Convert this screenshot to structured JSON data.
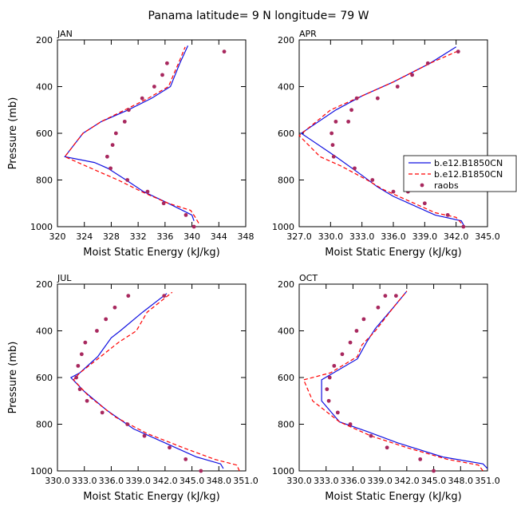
{
  "figure_title": "Panama  latitude= 9 N longitude= 79 W",
  "colors": {
    "model_1": "#1010e0",
    "model_2": "#ff0000",
    "raobs": "#a8285e"
  },
  "chart_data": [
    {
      "type": "line",
      "panel": "JAN",
      "xlabel": "Moist Static Energy (kJ/kg)",
      "ylabel": "Pressure (mb)",
      "xlim": [
        320,
        348
      ],
      "ylim": [
        1000,
        200
      ],
      "x_tick_values": [
        320,
        324,
        328,
        332,
        336,
        340,
        344,
        348
      ],
      "x_tick_labels": [
        "320",
        "324",
        "328",
        "332",
        "336",
        "340",
        "344",
        "348"
      ],
      "y_tick_values": [
        200,
        400,
        600,
        800,
        1000
      ],
      "y_tick_labels": [
        "200",
        "400",
        "600",
        "800",
        "1000"
      ],
      "series": [
        {
          "kind": "line",
          "color": "#1010e0",
          "style": "solid",
          "x": [
            340.3,
            340.0,
            336.5,
            332.8,
            330.2,
            327.5,
            325.5,
            321.1,
            323.8,
            326.5,
            330.5,
            334.0,
            336.8,
            338.2,
            339.4
          ],
          "y": [
            975,
            950,
            900,
            850,
            800,
            750,
            725,
            700,
            600,
            550,
            500,
            450,
            400,
            300,
            225
          ]
        },
        {
          "kind": "line",
          "color": "#ff0000",
          "style": "dashed",
          "x": [
            341.0,
            340.5,
            339.8,
            336.5,
            332.5,
            329.0,
            325.8,
            321.1,
            323.8,
            326.5,
            330.0,
            333.5,
            336.5,
            338.0,
            339.0
          ],
          "y": [
            985,
            960,
            930,
            900,
            850,
            800,
            760,
            700,
            600,
            550,
            500,
            450,
            400,
            300,
            230
          ]
        },
        {
          "kind": "points",
          "color": "#a8285e",
          "x": [
            340.3,
            339.1,
            335.8,
            333.4,
            330.4,
            327.9,
            327.4,
            328.2,
            328.7,
            330.0,
            330.6,
            332.6,
            334.4,
            335.6,
            336.3,
            344.8
          ],
          "y": [
            1000,
            950,
            900,
            850,
            800,
            750,
            700,
            650,
            600,
            550,
            500,
            450,
            400,
            350,
            300,
            250
          ]
        }
      ]
    },
    {
      "type": "line",
      "panel": "APR",
      "xlabel": "Moist Static Energy (kJ/kg)",
      "ylabel": "",
      "xlim": [
        327.0,
        345.0
      ],
      "ylim": [
        1000,
        200
      ],
      "x_tick_values": [
        327.0,
        330.0,
        333.0,
        336.0,
        339.0,
        342.0,
        345.0
      ],
      "x_tick_labels": [
        "327.0",
        "330.0",
        "333.0",
        "336.0",
        "339.0",
        "342.0",
        "345.0"
      ],
      "y_tick_values": [
        200,
        400,
        600,
        800,
        1000
      ],
      "y_tick_labels": [
        "200",
        "400",
        "600",
        "800",
        "1000"
      ],
      "series": [
        {
          "kind": "line",
          "color": "#1010e0",
          "style": "solid",
          "x": [
            342.8,
            342.5,
            340.0,
            336.0,
            334.5,
            333.0,
            330.5,
            327.2,
            330.5,
            333.0,
            336.0,
            339.5,
            342.0
          ],
          "y": [
            1000,
            975,
            950,
            870,
            830,
            780,
            700,
            600,
            500,
            440,
            380,
            300,
            230
          ]
        },
        {
          "kind": "line",
          "color": "#ff0000",
          "style": "dashed",
          "x": [
            342.5,
            342.0,
            340.0,
            337.0,
            335.0,
            333.5,
            331.0,
            329.0,
            327.0,
            330.0,
            333.0,
            336.0,
            339.5,
            342.3
          ],
          "y": [
            985,
            960,
            940,
            880,
            840,
            800,
            740,
            700,
            610,
            500,
            440,
            380,
            300,
            245
          ]
        },
        {
          "kind": "points",
          "color": "#a8285e",
          "x": [
            342.7,
            341.2,
            339.0,
            337.4,
            336.0,
            334.0,
            332.3,
            330.3,
            330.2,
            330.1,
            330.5,
            331.7,
            332.0,
            332.5,
            334.5,
            336.4,
            337.8,
            339.3,
            342.2
          ],
          "y": [
            1000,
            950,
            900,
            850,
            850,
            800,
            750,
            700,
            650,
            600,
            550,
            550,
            500,
            450,
            450,
            400,
            350,
            300,
            250
          ]
        }
      ],
      "legend": {
        "position": "right",
        "entries": [
          {
            "label": "b.e12.B1850CN",
            "color": "#1010e0",
            "style": "solid"
          },
          {
            "label": "b.e12.B1850CN",
            "color": "#ff0000",
            "style": "dashed"
          },
          {
            "label": "raobs",
            "color": "#a8285e",
            "style": "marker"
          }
        ]
      }
    },
    {
      "type": "line",
      "panel": "JUL",
      "xlabel": "Moist Static Energy (kJ/kg)",
      "ylabel": "Pressure (mb)",
      "xlim": [
        330.0,
        351.0
      ],
      "ylim": [
        1000,
        200
      ],
      "x_tick_values": [
        330.0,
        333.0,
        336.0,
        339.0,
        342.0,
        345.0,
        348.0,
        351.0
      ],
      "x_tick_labels": [
        "330.0",
        "333.0",
        "336.0",
        "339.0",
        "342.0",
        "345.0",
        "348.0",
        "351.0"
      ],
      "y_tick_values": [
        200,
        400,
        600,
        800,
        1000
      ],
      "y_tick_labels": [
        "200",
        "400",
        "600",
        "800",
        "1000"
      ],
      "series": [
        {
          "kind": "line",
          "color": "#1010e0",
          "style": "solid",
          "x": [
            348.5,
            348.2,
            345.5,
            342.0,
            338.5,
            335.5,
            333.0,
            331.5,
            332.5,
            334.5,
            336.0,
            337.0,
            339.5,
            342.2
          ],
          "y": [
            990,
            970,
            940,
            880,
            820,
            740,
            660,
            600,
            580,
            510,
            430,
            400,
            320,
            240
          ]
        },
        {
          "kind": "line",
          "color": "#ff0000",
          "style": "dashed",
          "x": [
            350.3,
            350.0,
            347.5,
            344.0,
            340.0,
            336.5,
            333.5,
            331.8,
            332.5,
            334.5,
            336.8,
            338.8,
            340.0,
            342.8
          ],
          "y": [
            1000,
            975,
            950,
            900,
            840,
            770,
            680,
            610,
            580,
            520,
            450,
            400,
            320,
            235
          ]
        },
        {
          "kind": "points",
          "color": "#a8285e",
          "x": [
            346.0,
            344.3,
            342.5,
            339.7,
            337.8,
            335.0,
            333.3,
            332.5,
            332.1,
            332.3,
            332.7,
            333.1,
            334.4,
            335.4,
            336.4,
            337.9,
            341.9
          ],
          "y": [
            1000,
            950,
            900,
            850,
            800,
            750,
            700,
            650,
            600,
            550,
            500,
            450,
            400,
            350,
            300,
            250,
            250
          ]
        }
      ]
    },
    {
      "type": "line",
      "panel": "OCT",
      "xlabel": "Moist Static Energy (kJ/kg)",
      "ylabel": "",
      "xlim": [
        330.0,
        351.0
      ],
      "ylim": [
        1000,
        200
      ],
      "x_tick_values": [
        330.0,
        333.0,
        336.0,
        339.0,
        342.0,
        345.0,
        348.0,
        351.0
      ],
      "x_tick_labels": [
        "330.0",
        "333.0",
        "336.0",
        "339.0",
        "342.0",
        "345.0",
        "348.0",
        "351.0"
      ],
      "y_tick_values": [
        200,
        400,
        600,
        800,
        1000
      ],
      "y_tick_labels": [
        "200",
        "400",
        "600",
        "800",
        "1000"
      ],
      "series": [
        {
          "kind": "line",
          "color": "#1010e0",
          "style": "solid",
          "x": [
            351.0,
            350.5,
            346.0,
            341.0,
            337.5,
            334.5,
            332.5,
            332.5,
            332.5,
            336.5,
            337.5,
            338.5,
            340.5,
            342.0
          ],
          "y": [
            990,
            970,
            940,
            880,
            830,
            790,
            700,
            660,
            610,
            520,
            450,
            390,
            300,
            230
          ]
        },
        {
          "kind": "line",
          "color": "#ff0000",
          "style": "dashed",
          "x": [
            350.5,
            350.0,
            346.5,
            342.0,
            338.0,
            334.5,
            331.5,
            330.5,
            333.5,
            336.5,
            337.0,
            338.5,
            340.5,
            342.0
          ],
          "y": [
            1000,
            975,
            950,
            900,
            850,
            790,
            700,
            610,
            580,
            510,
            460,
            400,
            300,
            230
          ]
        },
        {
          "kind": "points",
          "color": "#a8285e",
          "x": [
            345.0,
            343.5,
            339.8,
            338.0,
            335.7,
            334.3,
            333.3,
            333.1,
            333.4,
            333.9,
            334.8,
            335.7,
            336.4,
            337.2,
            338.8,
            339.6,
            340.8
          ],
          "y": [
            1000,
            950,
            900,
            850,
            800,
            750,
            700,
            650,
            600,
            550,
            500,
            450,
            400,
            350,
            300,
            250,
            250
          ]
        }
      ]
    }
  ]
}
